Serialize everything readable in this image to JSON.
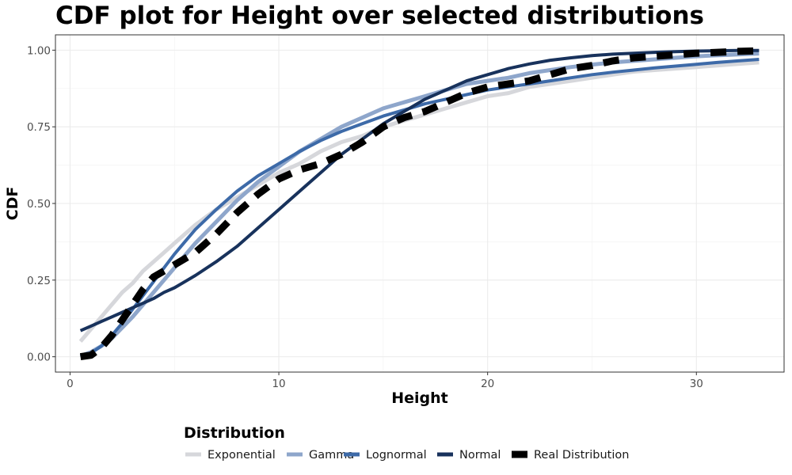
{
  "chart_data": {
    "type": "line",
    "title": "CDF plot for Height over selected distributions",
    "xlabel": "Height",
    "ylabel": "CDF",
    "xlim": [
      -0.7,
      34.2
    ],
    "ylim": [
      -0.05,
      1.05
    ],
    "x_ticks": [
      0,
      10,
      20,
      30
    ],
    "y_ticks": [
      0.0,
      0.25,
      0.5,
      0.75,
      1.0
    ],
    "x_tick_labels": [
      "0",
      "10",
      "20",
      "30"
    ],
    "y_tick_labels": [
      "0.00",
      "0.25",
      "0.50",
      "0.75",
      "1.00"
    ],
    "grid": true,
    "legend": {
      "title": "Distribution",
      "position": "bottom"
    },
    "x": [
      0.5,
      1,
      1.5,
      2,
      2.5,
      3,
      3.5,
      4,
      4.5,
      5,
      5.5,
      6,
      7,
      8,
      9,
      10,
      11,
      12,
      13,
      14,
      15,
      16,
      17,
      18,
      19,
      20,
      21,
      22,
      23,
      24,
      25,
      26,
      27,
      28,
      29,
      30,
      31,
      32,
      33
    ],
    "series": [
      {
        "name": "Exponential",
        "color": "#d6d7db",
        "width": 5,
        "dash": "none",
        "values": [
          0.05,
          0.09,
          0.13,
          0.17,
          0.21,
          0.24,
          0.28,
          0.31,
          0.34,
          0.37,
          0.4,
          0.43,
          0.48,
          0.52,
          0.56,
          0.6,
          0.63,
          0.67,
          0.7,
          0.72,
          0.75,
          0.77,
          0.79,
          0.81,
          0.83,
          0.85,
          0.86,
          0.88,
          0.89,
          0.9,
          0.91,
          0.92,
          0.93,
          0.935,
          0.94,
          0.945,
          0.95,
          0.955,
          0.96
        ]
      },
      {
        "name": "Gamma",
        "color": "#8ea6cb",
        "width": 5,
        "dash": "none",
        "values": [
          0.003,
          0.015,
          0.035,
          0.06,
          0.095,
          0.13,
          0.17,
          0.21,
          0.25,
          0.29,
          0.33,
          0.37,
          0.44,
          0.51,
          0.57,
          0.62,
          0.67,
          0.71,
          0.75,
          0.78,
          0.81,
          0.83,
          0.85,
          0.87,
          0.89,
          0.9,
          0.91,
          0.925,
          0.935,
          0.945,
          0.953,
          0.96,
          0.965,
          0.97,
          0.975,
          0.98,
          0.983,
          0.986,
          0.989
        ]
      },
      {
        "name": "Lognormal",
        "color": "#3d6aa8",
        "width": 4,
        "dash": "none",
        "values": [
          0.0,
          0.012,
          0.035,
          0.07,
          0.11,
          0.155,
          0.2,
          0.245,
          0.29,
          0.335,
          0.375,
          0.415,
          0.48,
          0.54,
          0.59,
          0.63,
          0.67,
          0.705,
          0.735,
          0.76,
          0.785,
          0.805,
          0.825,
          0.84,
          0.855,
          0.87,
          0.88,
          0.89,
          0.9,
          0.91,
          0.92,
          0.928,
          0.935,
          0.942,
          0.948,
          0.954,
          0.96,
          0.965,
          0.97
        ]
      },
      {
        "name": "Normal",
        "color": "#18325c",
        "width": 4,
        "dash": "none",
        "values": [
          0.085,
          0.1,
          0.115,
          0.13,
          0.145,
          0.16,
          0.175,
          0.19,
          0.21,
          0.225,
          0.245,
          0.265,
          0.31,
          0.36,
          0.42,
          0.48,
          0.54,
          0.6,
          0.66,
          0.71,
          0.76,
          0.8,
          0.84,
          0.87,
          0.9,
          0.92,
          0.94,
          0.955,
          0.967,
          0.975,
          0.982,
          0.987,
          0.99,
          0.993,
          0.995,
          0.997,
          0.998,
          0.999,
          0.999
        ]
      },
      {
        "name": "Real Distribution",
        "color": "#000000",
        "width": 9,
        "dash": "20 14",
        "values": [
          0.0,
          0.005,
          0.03,
          0.07,
          0.12,
          0.17,
          0.22,
          0.26,
          0.28,
          0.3,
          0.32,
          0.34,
          0.4,
          0.47,
          0.53,
          0.58,
          0.61,
          0.63,
          0.66,
          0.7,
          0.75,
          0.78,
          0.8,
          0.83,
          0.86,
          0.88,
          0.89,
          0.9,
          0.92,
          0.94,
          0.95,
          0.965,
          0.975,
          0.98,
          0.985,
          0.99,
          0.993,
          0.996,
          0.998
        ]
      }
    ]
  }
}
